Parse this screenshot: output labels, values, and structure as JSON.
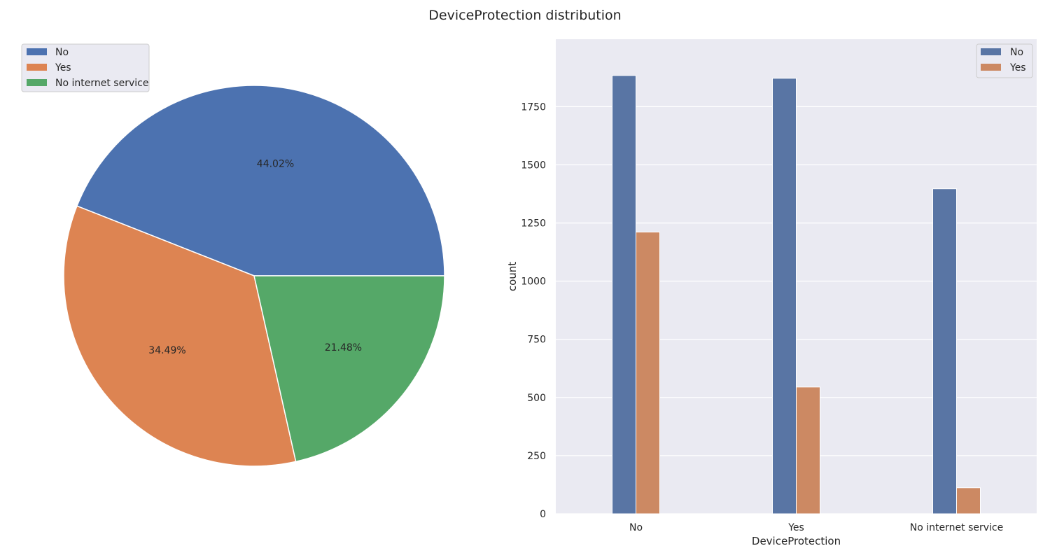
{
  "figure_title": "DeviceProtection distribution",
  "chart_data": [
    {
      "type": "pie",
      "labels": [
        "No",
        "Yes",
        "No internet service"
      ],
      "values": [
        44.02,
        34.49,
        21.48
      ],
      "value_labels": [
        "44.02%",
        "34.49%",
        "21.48%"
      ],
      "colors": [
        "#4c72b0",
        "#dd8452",
        "#55a868"
      ],
      "legend_placement": "top-left"
    },
    {
      "type": "bar",
      "categories": [
        "No",
        "Yes",
        "No internet service"
      ],
      "series": [
        {
          "name": "No",
          "values": [
            1884,
            1872,
            1397
          ],
          "color": "#5975a4"
        },
        {
          "name": "Yes",
          "values": [
            1211,
            545,
            112
          ],
          "color": "#cc8963"
        }
      ],
      "xlabel": "DeviceProtection",
      "ylabel": "count",
      "ylim": [
        0,
        2040
      ],
      "yticks": [
        0,
        250,
        500,
        750,
        1000,
        1250,
        1500,
        1750
      ],
      "grid": true,
      "legend_placement": "top-right"
    }
  ]
}
